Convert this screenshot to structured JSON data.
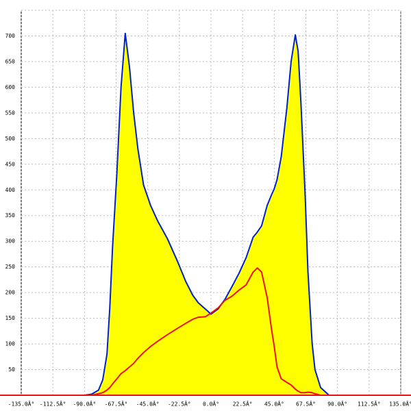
{
  "chart_data": {
    "type": "area",
    "x": [
      -90,
      -85,
      -80,
      -77,
      -74,
      -72,
      -70,
      -67,
      -64,
      -61,
      -58,
      -55,
      -52,
      -48,
      -43,
      -38,
      -31,
      -24,
      -18,
      -13,
      -9,
      -4,
      0,
      5,
      10,
      15,
      20,
      25,
      30,
      33,
      36,
      40,
      43,
      45,
      47,
      50,
      54,
      57,
      60,
      62,
      64,
      67,
      69,
      72,
      74,
      78,
      84,
      90
    ],
    "series": [
      {
        "color": "#0022cc",
        "fill": "#ffff00",
        "values": [
          0,
          2,
          10,
          30,
          80,
          170,
          290,
          430,
          600,
          705,
          640,
          550,
          480,
          410,
          370,
          340,
          305,
          262,
          222,
          195,
          180,
          168,
          158,
          168,
          187,
          212,
          238,
          268,
          308,
          318,
          330,
          370,
          390,
          402,
          420,
          465,
          560,
          650,
          702,
          670,
          570,
          390,
          240,
          100,
          50,
          15,
          0,
          0
        ]
      },
      {
        "color": "#ee1111",
        "values": [
          0,
          0,
          3,
          5,
          10,
          15,
          22,
          32,
          42,
          48,
          55,
          62,
          72,
          83,
          95,
          105,
          118,
          130,
          140,
          148,
          152,
          153,
          160,
          170,
          185,
          193,
          205,
          215,
          240,
          248,
          240,
          190,
          130,
          95,
          55,
          32,
          25,
          20,
          12,
          8,
          5,
          5,
          6,
          5,
          3,
          0,
          0,
          0
        ]
      }
    ],
    "xlim": [
      -135,
      135
    ],
    "xticks": [
      {
        "value": -135,
        "label": "-135.0Â°"
      },
      {
        "value": -112.5,
        "label": "-112.5Â°"
      },
      {
        "value": -90,
        "label": "-90.0Â°"
      },
      {
        "value": -67.5,
        "label": "-67.5Â°"
      },
      {
        "value": -45,
        "label": "-45.0Â°"
      },
      {
        "value": -22.5,
        "label": "-22.5Â°"
      },
      {
        "value": 0,
        "label": "0.0Â°"
      },
      {
        "value": 22.5,
        "label": "22.5Â°"
      },
      {
        "value": 45,
        "label": "45.0Â°"
      },
      {
        "value": 67.5,
        "label": "67.5Â°"
      },
      {
        "value": 90,
        "label": "90.0Â°"
      },
      {
        "value": 112.5,
        "label": "112.5Â°"
      },
      {
        "value": 135,
        "label": "135.0Â°"
      }
    ],
    "ylim": [
      0,
      750
    ],
    "yticks": [
      50,
      100,
      150,
      200,
      250,
      300,
      350,
      400,
      450,
      500,
      550,
      600,
      650,
      700
    ],
    "grid": true
  }
}
